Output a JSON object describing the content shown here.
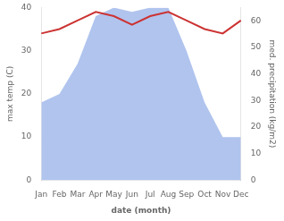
{
  "chart_data": {
    "type": "line",
    "xlabel": "date (month)",
    "ylabel": "max temp (C)",
    "y2label": "med. precipitation (kg/m2)",
    "categories": [
      "Jan",
      "Feb",
      "Mar",
      "Apr",
      "May",
      "Jun",
      "Jul",
      "Aug",
      "Sep",
      "Oct",
      "Nov",
      "Dec"
    ],
    "series": [
      {
        "type": "area",
        "color": "#b0c4ee",
        "values": [
          18,
          20,
          27,
          38,
          40,
          39,
          40,
          40,
          30,
          18,
          10,
          10
        ]
      },
      {
        "type": "line",
        "color": "#cc3333",
        "values": [
          34,
          35,
          37,
          39,
          38,
          36,
          38,
          39,
          37,
          35,
          34,
          37
        ]
      }
    ],
    "ylim": [
      0,
      40
    ],
    "yticks": [
      0,
      10,
      20,
      30,
      40
    ],
    "y2lim": [
      0,
      65
    ],
    "y2ticks": [
      0,
      10,
      20,
      30,
      40,
      50,
      60
    ],
    "grid": false
  }
}
